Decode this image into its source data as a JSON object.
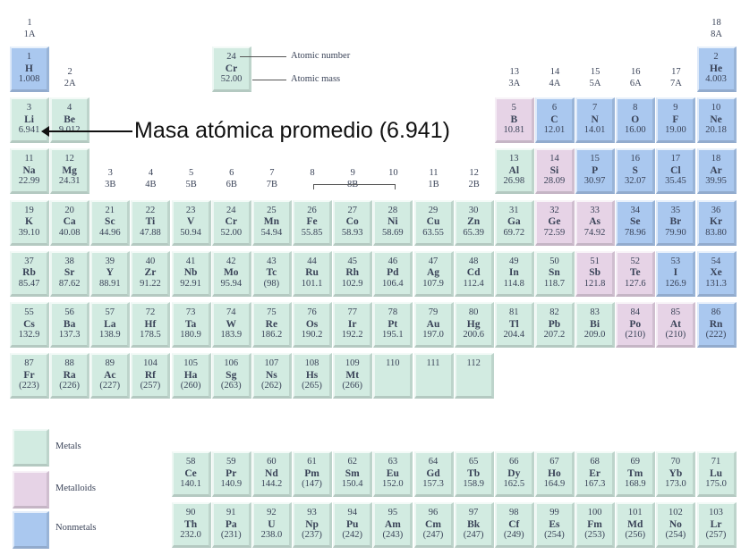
{
  "colors": {
    "metal": "#d2ebe1",
    "metalloid": "#e6d3e6",
    "nonmetal": "#aac8ef"
  },
  "group_labels": [
    {
      "group": 1,
      "num": "1",
      "letter": "1A"
    },
    {
      "group": 2,
      "num": "2",
      "letter": "2A"
    },
    {
      "group": 3,
      "num": "3",
      "letter": "3B"
    },
    {
      "group": 4,
      "num": "4",
      "letter": "4B"
    },
    {
      "group": 5,
      "num": "5",
      "letter": "5B"
    },
    {
      "group": 6,
      "num": "6",
      "letter": "6B"
    },
    {
      "group": 7,
      "num": "7",
      "letter": "7B"
    },
    {
      "group": 8,
      "num": "8",
      "letter": ""
    },
    {
      "group": 9,
      "num": "9",
      "letter": "8B"
    },
    {
      "group": 10,
      "num": "10",
      "letter": ""
    },
    {
      "group": 11,
      "num": "11",
      "letter": "1B"
    },
    {
      "group": 12,
      "num": "12",
      "letter": "2B"
    },
    {
      "group": 13,
      "num": "13",
      "letter": "3A"
    },
    {
      "group": 14,
      "num": "14",
      "letter": "4A"
    },
    {
      "group": 15,
      "num": "15",
      "letter": "5A"
    },
    {
      "group": 16,
      "num": "16",
      "letter": "6A"
    },
    {
      "group": 17,
      "num": "17",
      "letter": "7A"
    },
    {
      "group": 18,
      "num": "18",
      "letter": "8A"
    }
  ],
  "key": {
    "number": "24",
    "symbol": "Cr",
    "mass": "52.00",
    "number_label": "Atomic number",
    "mass_label": "Atomic mass"
  },
  "annotation": "Masa atómica promedio (6.941)",
  "legend": [
    {
      "label": "Metals",
      "type": "metal"
    },
    {
      "label": "Metalloids",
      "type": "metalloid"
    },
    {
      "label": "Nonmetals",
      "type": "nonmetal"
    }
  ],
  "elements": [
    [
      "1",
      "H",
      "1.008",
      1,
      1,
      "nonmetal"
    ],
    [
      "2",
      "He",
      "4.003",
      1,
      18,
      "nonmetal"
    ],
    [
      "3",
      "Li",
      "6.941",
      2,
      1,
      "metal"
    ],
    [
      "4",
      "Be",
      "9.012",
      2,
      2,
      "metal"
    ],
    [
      "5",
      "B",
      "10.81",
      2,
      13,
      "metalloid"
    ],
    [
      "6",
      "C",
      "12.01",
      2,
      14,
      "nonmetal"
    ],
    [
      "7",
      "N",
      "14.01",
      2,
      15,
      "nonmetal"
    ],
    [
      "8",
      "O",
      "16.00",
      2,
      16,
      "nonmetal"
    ],
    [
      "9",
      "F",
      "19.00",
      2,
      17,
      "nonmetal"
    ],
    [
      "10",
      "Ne",
      "20.18",
      2,
      18,
      "nonmetal"
    ],
    [
      "11",
      "Na",
      "22.99",
      3,
      1,
      "metal"
    ],
    [
      "12",
      "Mg",
      "24.31",
      3,
      2,
      "metal"
    ],
    [
      "13",
      "Al",
      "26.98",
      3,
      13,
      "metal"
    ],
    [
      "14",
      "Si",
      "28.09",
      3,
      14,
      "metalloid"
    ],
    [
      "15",
      "P",
      "30.97",
      3,
      15,
      "nonmetal"
    ],
    [
      "16",
      "S",
      "32.07",
      3,
      16,
      "nonmetal"
    ],
    [
      "17",
      "Cl",
      "35.45",
      3,
      17,
      "nonmetal"
    ],
    [
      "18",
      "Ar",
      "39.95",
      3,
      18,
      "nonmetal"
    ],
    [
      "19",
      "K",
      "39.10",
      4,
      1,
      "metal"
    ],
    [
      "20",
      "Ca",
      "40.08",
      4,
      2,
      "metal"
    ],
    [
      "21",
      "Sc",
      "44.96",
      4,
      3,
      "metal"
    ],
    [
      "22",
      "Ti",
      "47.88",
      4,
      4,
      "metal"
    ],
    [
      "23",
      "V",
      "50.94",
      4,
      5,
      "metal"
    ],
    [
      "24",
      "Cr",
      "52.00",
      4,
      6,
      "metal"
    ],
    [
      "25",
      "Mn",
      "54.94",
      4,
      7,
      "metal"
    ],
    [
      "26",
      "Fe",
      "55.85",
      4,
      8,
      "metal"
    ],
    [
      "27",
      "Co",
      "58.93",
      4,
      9,
      "metal"
    ],
    [
      "28",
      "Ni",
      "58.69",
      4,
      10,
      "metal"
    ],
    [
      "29",
      "Cu",
      "63.55",
      4,
      11,
      "metal"
    ],
    [
      "30",
      "Zn",
      "65.39",
      4,
      12,
      "metal"
    ],
    [
      "31",
      "Ga",
      "69.72",
      4,
      13,
      "metal"
    ],
    [
      "32",
      "Ge",
      "72.59",
      4,
      14,
      "metalloid"
    ],
    [
      "33",
      "As",
      "74.92",
      4,
      15,
      "metalloid"
    ],
    [
      "34",
      "Se",
      "78.96",
      4,
      16,
      "nonmetal"
    ],
    [
      "35",
      "Br",
      "79.90",
      4,
      17,
      "nonmetal"
    ],
    [
      "36",
      "Kr",
      "83.80",
      4,
      18,
      "nonmetal"
    ],
    [
      "37",
      "Rb",
      "85.47",
      5,
      1,
      "metal"
    ],
    [
      "38",
      "Sr",
      "87.62",
      5,
      2,
      "metal"
    ],
    [
      "39",
      "Y",
      "88.91",
      5,
      3,
      "metal"
    ],
    [
      "40",
      "Zr",
      "91.22",
      5,
      4,
      "metal"
    ],
    [
      "41",
      "Nb",
      "92.91",
      5,
      5,
      "metal"
    ],
    [
      "42",
      "Mo",
      "95.94",
      5,
      6,
      "metal"
    ],
    [
      "43",
      "Tc",
      "(98)",
      5,
      7,
      "metal"
    ],
    [
      "44",
      "Ru",
      "101.1",
      5,
      8,
      "metal"
    ],
    [
      "45",
      "Rh",
      "102.9",
      5,
      9,
      "metal"
    ],
    [
      "46",
      "Pd",
      "106.4",
      5,
      10,
      "metal"
    ],
    [
      "47",
      "Ag",
      "107.9",
      5,
      11,
      "metal"
    ],
    [
      "48",
      "Cd",
      "112.4",
      5,
      12,
      "metal"
    ],
    [
      "49",
      "In",
      "114.8",
      5,
      13,
      "metal"
    ],
    [
      "50",
      "Sn",
      "118.7",
      5,
      14,
      "metal"
    ],
    [
      "51",
      "Sb",
      "121.8",
      5,
      15,
      "metalloid"
    ],
    [
      "52",
      "Te",
      "127.6",
      5,
      16,
      "metalloid"
    ],
    [
      "53",
      "I",
      "126.9",
      5,
      17,
      "nonmetal"
    ],
    [
      "54",
      "Xe",
      "131.3",
      5,
      18,
      "nonmetal"
    ],
    [
      "55",
      "Cs",
      "132.9",
      6,
      1,
      "metal"
    ],
    [
      "56",
      "Ba",
      "137.3",
      6,
      2,
      "metal"
    ],
    [
      "57",
      "La",
      "138.9",
      6,
      3,
      "metal"
    ],
    [
      "72",
      "Hf",
      "178.5",
      6,
      4,
      "metal"
    ],
    [
      "73",
      "Ta",
      "180.9",
      6,
      5,
      "metal"
    ],
    [
      "74",
      "W",
      "183.9",
      6,
      6,
      "metal"
    ],
    [
      "75",
      "Re",
      "186.2",
      6,
      7,
      "metal"
    ],
    [
      "76",
      "Os",
      "190.2",
      6,
      8,
      "metal"
    ],
    [
      "77",
      "Ir",
      "192.2",
      6,
      9,
      "metal"
    ],
    [
      "78",
      "Pt",
      "195.1",
      6,
      10,
      "metal"
    ],
    [
      "79",
      "Au",
      "197.0",
      6,
      11,
      "metal"
    ],
    [
      "80",
      "Hg",
      "200.6",
      6,
      12,
      "metal"
    ],
    [
      "81",
      "Tl",
      "204.4",
      6,
      13,
      "metal"
    ],
    [
      "82",
      "Pb",
      "207.2",
      6,
      14,
      "metal"
    ],
    [
      "83",
      "Bi",
      "209.0",
      6,
      15,
      "metal"
    ],
    [
      "84",
      "Po",
      "(210)",
      6,
      16,
      "metalloid"
    ],
    [
      "85",
      "At",
      "(210)",
      6,
      17,
      "metalloid"
    ],
    [
      "86",
      "Rn",
      "(222)",
      6,
      18,
      "nonmetal"
    ],
    [
      "87",
      "Fr",
      "(223)",
      7,
      1,
      "metal"
    ],
    [
      "88",
      "Ra",
      "(226)",
      7,
      2,
      "metal"
    ],
    [
      "89",
      "Ac",
      "(227)",
      7,
      3,
      "metal"
    ],
    [
      "104",
      "Rf",
      "(257)",
      7,
      4,
      "metal"
    ],
    [
      "105",
      "Ha",
      "(260)",
      7,
      5,
      "metal"
    ],
    [
      "106",
      "Sg",
      "(263)",
      7,
      6,
      "metal"
    ],
    [
      "107",
      "Ns",
      "(262)",
      7,
      7,
      "metal"
    ],
    [
      "108",
      "Hs",
      "(265)",
      7,
      8,
      "metal"
    ],
    [
      "109",
      "Mt",
      "(266)",
      7,
      9,
      "metal"
    ],
    [
      "110",
      "",
      "",
      7,
      10,
      "metal"
    ],
    [
      "111",
      "",
      "",
      7,
      11,
      "metal"
    ],
    [
      "112",
      "",
      "",
      7,
      12,
      "metal"
    ],
    [
      "58",
      "Ce",
      "140.1",
      8,
      5,
      "metal"
    ],
    [
      "59",
      "Pr",
      "140.9",
      8,
      6,
      "metal"
    ],
    [
      "60",
      "Nd",
      "144.2",
      8,
      7,
      "metal"
    ],
    [
      "61",
      "Pm",
      "(147)",
      8,
      8,
      "metal"
    ],
    [
      "62",
      "Sm",
      "150.4",
      8,
      9,
      "metal"
    ],
    [
      "63",
      "Eu",
      "152.0",
      8,
      10,
      "metal"
    ],
    [
      "64",
      "Gd",
      "157.3",
      8,
      11,
      "metal"
    ],
    [
      "65",
      "Tb",
      "158.9",
      8,
      12,
      "metal"
    ],
    [
      "66",
      "Dy",
      "162.5",
      8,
      13,
      "metal"
    ],
    [
      "67",
      "Ho",
      "164.9",
      8,
      14,
      "metal"
    ],
    [
      "68",
      "Er",
      "167.3",
      8,
      15,
      "metal"
    ],
    [
      "69",
      "Tm",
      "168.9",
      8,
      16,
      "metal"
    ],
    [
      "70",
      "Yb",
      "173.0",
      8,
      17,
      "metal"
    ],
    [
      "71",
      "Lu",
      "175.0",
      8,
      18,
      "metal"
    ],
    [
      "90",
      "Th",
      "232.0",
      9,
      5,
      "metal"
    ],
    [
      "91",
      "Pa",
      "(231)",
      9,
      6,
      "metal"
    ],
    [
      "92",
      "U",
      "238.0",
      9,
      7,
      "metal"
    ],
    [
      "93",
      "Np",
      "(237)",
      9,
      8,
      "metal"
    ],
    [
      "94",
      "Pu",
      "(242)",
      9,
      9,
      "metal"
    ],
    [
      "95",
      "Am",
      "(243)",
      9,
      10,
      "metal"
    ],
    [
      "96",
      "Cm",
      "(247)",
      9,
      11,
      "metal"
    ],
    [
      "97",
      "Bk",
      "(247)",
      9,
      12,
      "metal"
    ],
    [
      "98",
      "Cf",
      "(249)",
      9,
      13,
      "metal"
    ],
    [
      "99",
      "Es",
      "(254)",
      9,
      14,
      "metal"
    ],
    [
      "100",
      "Fm",
      "(253)",
      9,
      15,
      "metal"
    ],
    [
      "101",
      "Md",
      "(256)",
      9,
      16,
      "metal"
    ],
    [
      "102",
      "No",
      "(254)",
      9,
      17,
      "metal"
    ],
    [
      "103",
      "Lr",
      "(257)",
      9,
      18,
      "metal"
    ]
  ]
}
